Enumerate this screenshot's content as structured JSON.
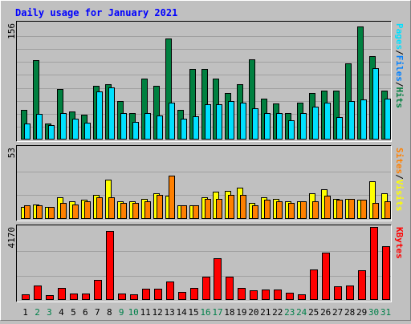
{
  "colors": {
    "page_bg": "#c0c0c0",
    "plot_bg": "#c0c0c0",
    "title": "#0000ff",
    "hits": "#008040",
    "files": "#0080ff",
    "pages": "#00e0ff",
    "visits": "#ffff00",
    "sites": "#ff8000",
    "kbytes": "#ff0000",
    "weekend_day": "#00804a",
    "weekday_day": "#000000",
    "grid": "#a0a0a0",
    "dark": "#000000"
  },
  "chart_data": {
    "type": "bar",
    "title": "Daily usage for January 2021",
    "categories": [
      "1",
      "2",
      "3",
      "4",
      "5",
      "6",
      "7",
      "8",
      "9",
      "10",
      "11",
      "12",
      "13",
      "14",
      "15",
      "16",
      "17",
      "18",
      "19",
      "20",
      "21",
      "22",
      "23",
      "24",
      "25",
      "26",
      "27",
      "28",
      "29",
      "30",
      "31"
    ],
    "weekend_days": [
      "2",
      "3",
      "9",
      "10",
      "16",
      "17",
      "23",
      "24",
      "30",
      "31"
    ],
    "panels": [
      {
        "id": "hits-files-pages",
        "max_label": "156",
        "ylim": [
          0,
          156
        ],
        "legend": [
          "Pages",
          "/",
          "Files",
          "/",
          "Hits"
        ],
        "series": [
          {
            "name": "Hits",
            "values": [
              40,
              106,
              22,
              68,
              38,
              33,
              72,
              74,
              52,
              36,
              82,
              72,
              136,
              40,
              95,
              95,
              82,
              62,
              74,
              108,
              55,
              48,
              35,
              50,
              62,
              66,
              66,
              102,
              152,
              112,
              66
            ]
          },
          {
            "name": "Files",
            "values": [
              22,
              34,
              19,
              36,
              28,
              23,
              65,
              70,
              36,
              24,
              36,
              32,
              50,
              28,
              31,
              47,
              47,
              52,
              50,
              42,
              36,
              35,
              26,
              36,
              44,
              50,
              30,
              52,
              54,
              96,
              55
            ]
          },
          {
            "name": "Pages",
            "values": [
              22,
              34,
              19,
              36,
              28,
              23,
              65,
              70,
              36,
              24,
              36,
              32,
              50,
              28,
              31,
              47,
              47,
              52,
              50,
              42,
              36,
              35,
              26,
              36,
              44,
              50,
              30,
              52,
              54,
              96,
              55
            ]
          }
        ]
      },
      {
        "id": "visits-sites",
        "max_label": "53",
        "ylim": [
          0,
          53
        ],
        "legend": [
          "Sites",
          "/",
          "Visits"
        ],
        "series": [
          {
            "name": "Visits",
            "values": [
              9,
              11,
              9,
              16,
              13,
              14,
              18,
              29,
              13,
              13,
              15,
              19,
              17,
              10,
              10,
              16,
              20,
              21,
              23,
              12,
              16,
              15,
              13,
              13,
              19,
              22,
              15,
              15,
              14,
              28,
              19
            ]
          },
          {
            "name": "Sites",
            "values": [
              10,
              10,
              9,
              12,
              11,
              13,
              16,
              16,
              12,
              12,
              13,
              18,
              32,
              10,
              10,
              15,
              15,
              18,
              18,
              10,
              14,
              13,
              12,
              13,
              13,
              17,
              14,
              15,
              14,
              12,
              13
            ]
          }
        ]
      },
      {
        "id": "kbytes",
        "max_label": "4170",
        "ylim": [
          0,
          4170
        ],
        "legend": [
          "KBytes"
        ],
        "series": [
          {
            "name": "KBytes",
            "values": [
              310,
              810,
              280,
              690,
              380,
              360,
              1130,
              3930,
              380,
              300,
              620,
              620,
              1050,
              470,
              690,
              1310,
              2400,
              1350,
              670,
              530,
              600,
              580,
              400,
              340,
              1740,
              2700,
              770,
              840,
              1690,
              4170,
              3060
            ]
          }
        ]
      }
    ]
  }
}
